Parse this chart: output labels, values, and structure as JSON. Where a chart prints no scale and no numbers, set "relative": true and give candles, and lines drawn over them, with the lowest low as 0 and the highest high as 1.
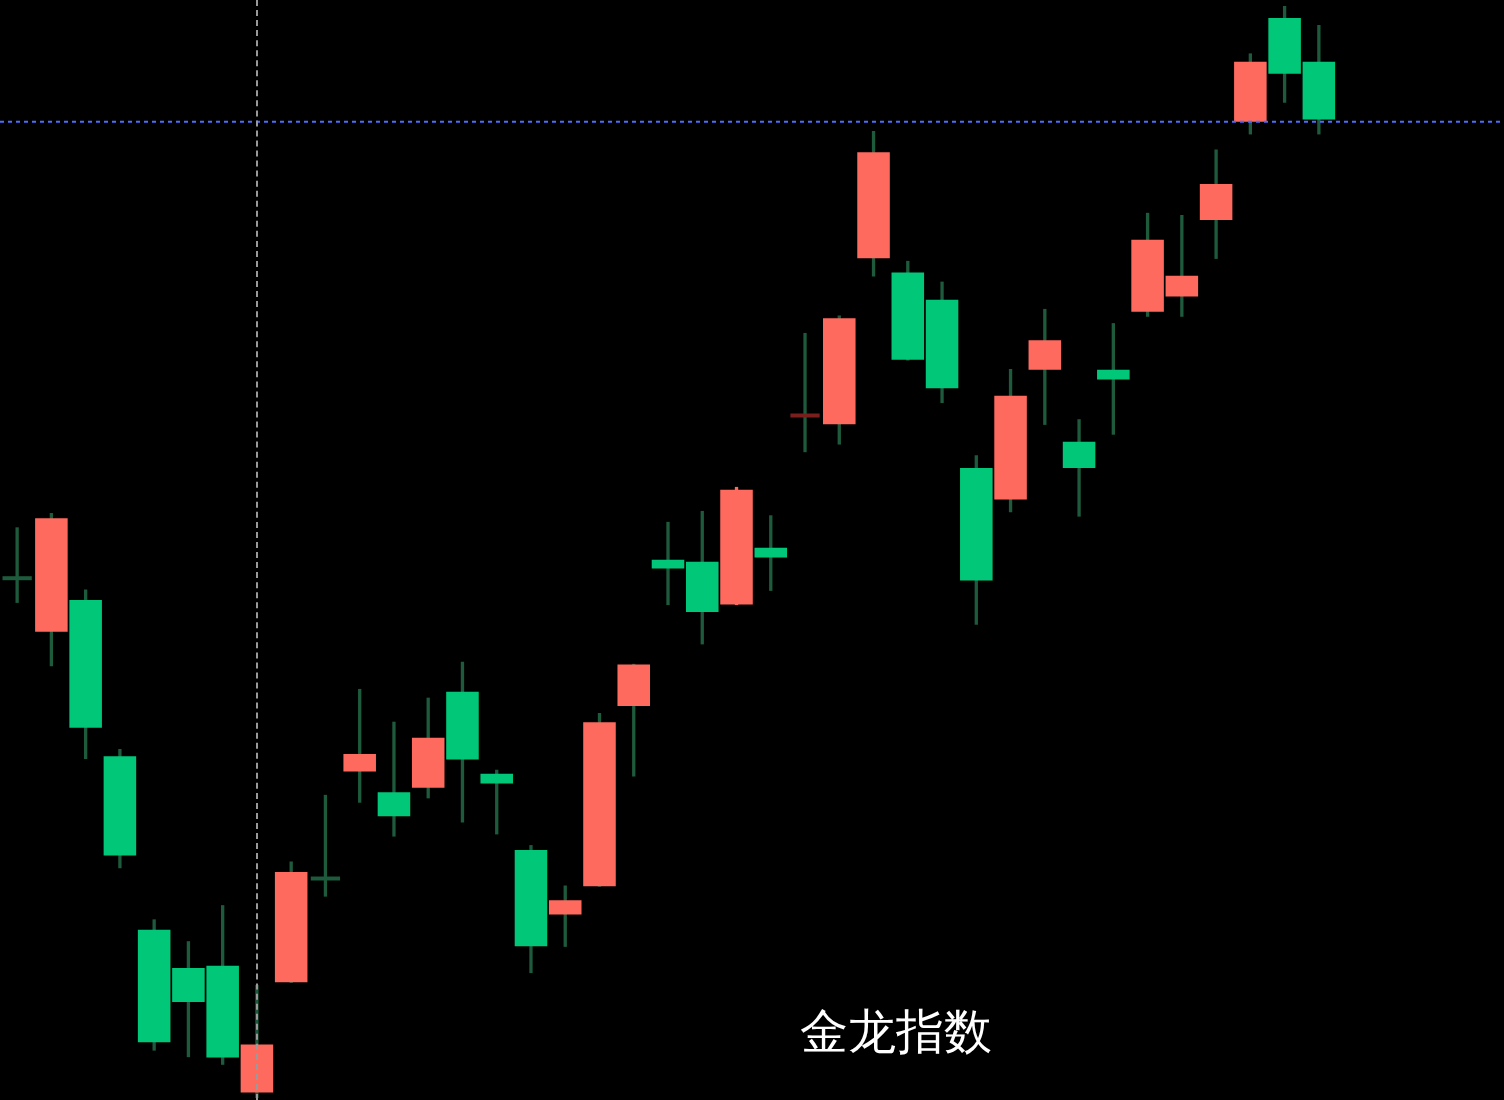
{
  "chart_data": {
    "type": "candlestick",
    "relative": true,
    "legend": false,
    "categories": [
      null,
      null,
      null,
      null,
      null,
      null,
      null,
      null,
      null,
      null,
      null,
      null,
      null,
      null,
      null,
      null,
      null,
      null,
      null,
      null,
      null,
      null,
      null,
      null,
      null,
      null,
      null,
      null,
      null,
      null,
      null,
      null,
      null,
      null,
      null,
      null,
      null,
      null,
      null
    ],
    "ohlc": [
      [
        0.476,
        0.522,
        0.454,
        0.476
      ],
      [
        0.427,
        0.535,
        0.396,
        0.531
      ],
      [
        0.456,
        0.465,
        0.311,
        0.339
      ],
      [
        0.313,
        0.319,
        0.211,
        0.222
      ],
      [
        0.154,
        0.163,
        0.044,
        0.051
      ],
      [
        0.119,
        0.143,
        0.038,
        0.088
      ],
      [
        0.121,
        0.176,
        0.031,
        0.037
      ],
      [
        0.005,
        0.103,
        0,
        0.049
      ],
      [
        0.106,
        0.216,
        0.106,
        0.207
      ],
      [
        0.201,
        0.277,
        0.185,
        0.201
      ],
      [
        0.299,
        0.374,
        0.271,
        0.315
      ],
      [
        0.28,
        0.344,
        0.24,
        0.258
      ],
      [
        0.284,
        0.366,
        0.275,
        0.33
      ],
      [
        0.372,
        0.399,
        0.253,
        0.31
      ],
      [
        0.297,
        0.3,
        0.242,
        0.288
      ],
      [
        0.227,
        0.231,
        0.115,
        0.139
      ],
      [
        0.168,
        0.194,
        0.139,
        0.181
      ],
      [
        0.194,
        0.352,
        0.194,
        0.344
      ],
      [
        0.359,
        0.397,
        0.295,
        0.397
      ],
      [
        0.493,
        0.527,
        0.452,
        0.485
      ],
      [
        0.491,
        0.537,
        0.416,
        0.445
      ],
      [
        0.452,
        0.559,
        0.452,
        0.557
      ],
      [
        0.504,
        0.533,
        0.465,
        0.495
      ],
      [
        0.625,
        0.7,
        0.592,
        0.625
      ],
      [
        0.617,
        0.716,
        0.599,
        0.714
      ],
      [
        0.769,
        0.885,
        0.753,
        0.866
      ],
      [
        0.756,
        0.766,
        0.676,
        0.676
      ],
      [
        0.731,
        0.747,
        0.637,
        0.65
      ],
      [
        0.577,
        0.588,
        0.434,
        0.474
      ],
      [
        0.548,
        0.667,
        0.537,
        0.643
      ],
      [
        0.667,
        0.722,
        0.617,
        0.694
      ],
      [
        0.601,
        0.621,
        0.533,
        0.577
      ],
      [
        0.667,
        0.709,
        0.608,
        0.658
      ],
      [
        0.72,
        0.81,
        0.716,
        0.786
      ],
      [
        0.734,
        0.808,
        0.716,
        0.753
      ],
      [
        0.804,
        0.868,
        0.769,
        0.837
      ],
      [
        0.894,
        0.956,
        0.883,
        0.949
      ],
      [
        0.989,
        1,
        0.912,
        0.938
      ],
      [
        0.949,
        0.982,
        0.883,
        0.896
      ]
    ],
    "colors": [
      "#1e5a3c",
      "#ff6a5f",
      "#00c878",
      "#00c878",
      "#00c878",
      "#00c878",
      "#00c878",
      "#ff6a5f",
      "#ff6a5f",
      "#1e5a3c",
      "#ff6a5f",
      "#00c878",
      "#ff6a5f",
      "#00c878",
      "#00c878",
      "#00c878",
      "#ff6a5f",
      "#ff6a5f",
      "#ff6a5f",
      "#00c878",
      "#00c878",
      "#ff6a5f",
      "#00c878",
      "#7a1e1e",
      "#ff6a5f",
      "#ff6a5f",
      "#00c878",
      "#00c878",
      "#00c878",
      "#ff6a5f",
      "#ff6a5f",
      "#00c878",
      "#00c878",
      "#ff6a5f",
      "#ff6a5f",
      "#ff6a5f",
      "#ff6a5f",
      "#00c878",
      "#00c878"
    ],
    "ref_lines": [
      {
        "axis": "y",
        "value": 0.894,
        "color": "#4a6cff",
        "line_style": "dotted"
      }
    ],
    "annotations": [
      "金龙指数"
    ]
  }
}
